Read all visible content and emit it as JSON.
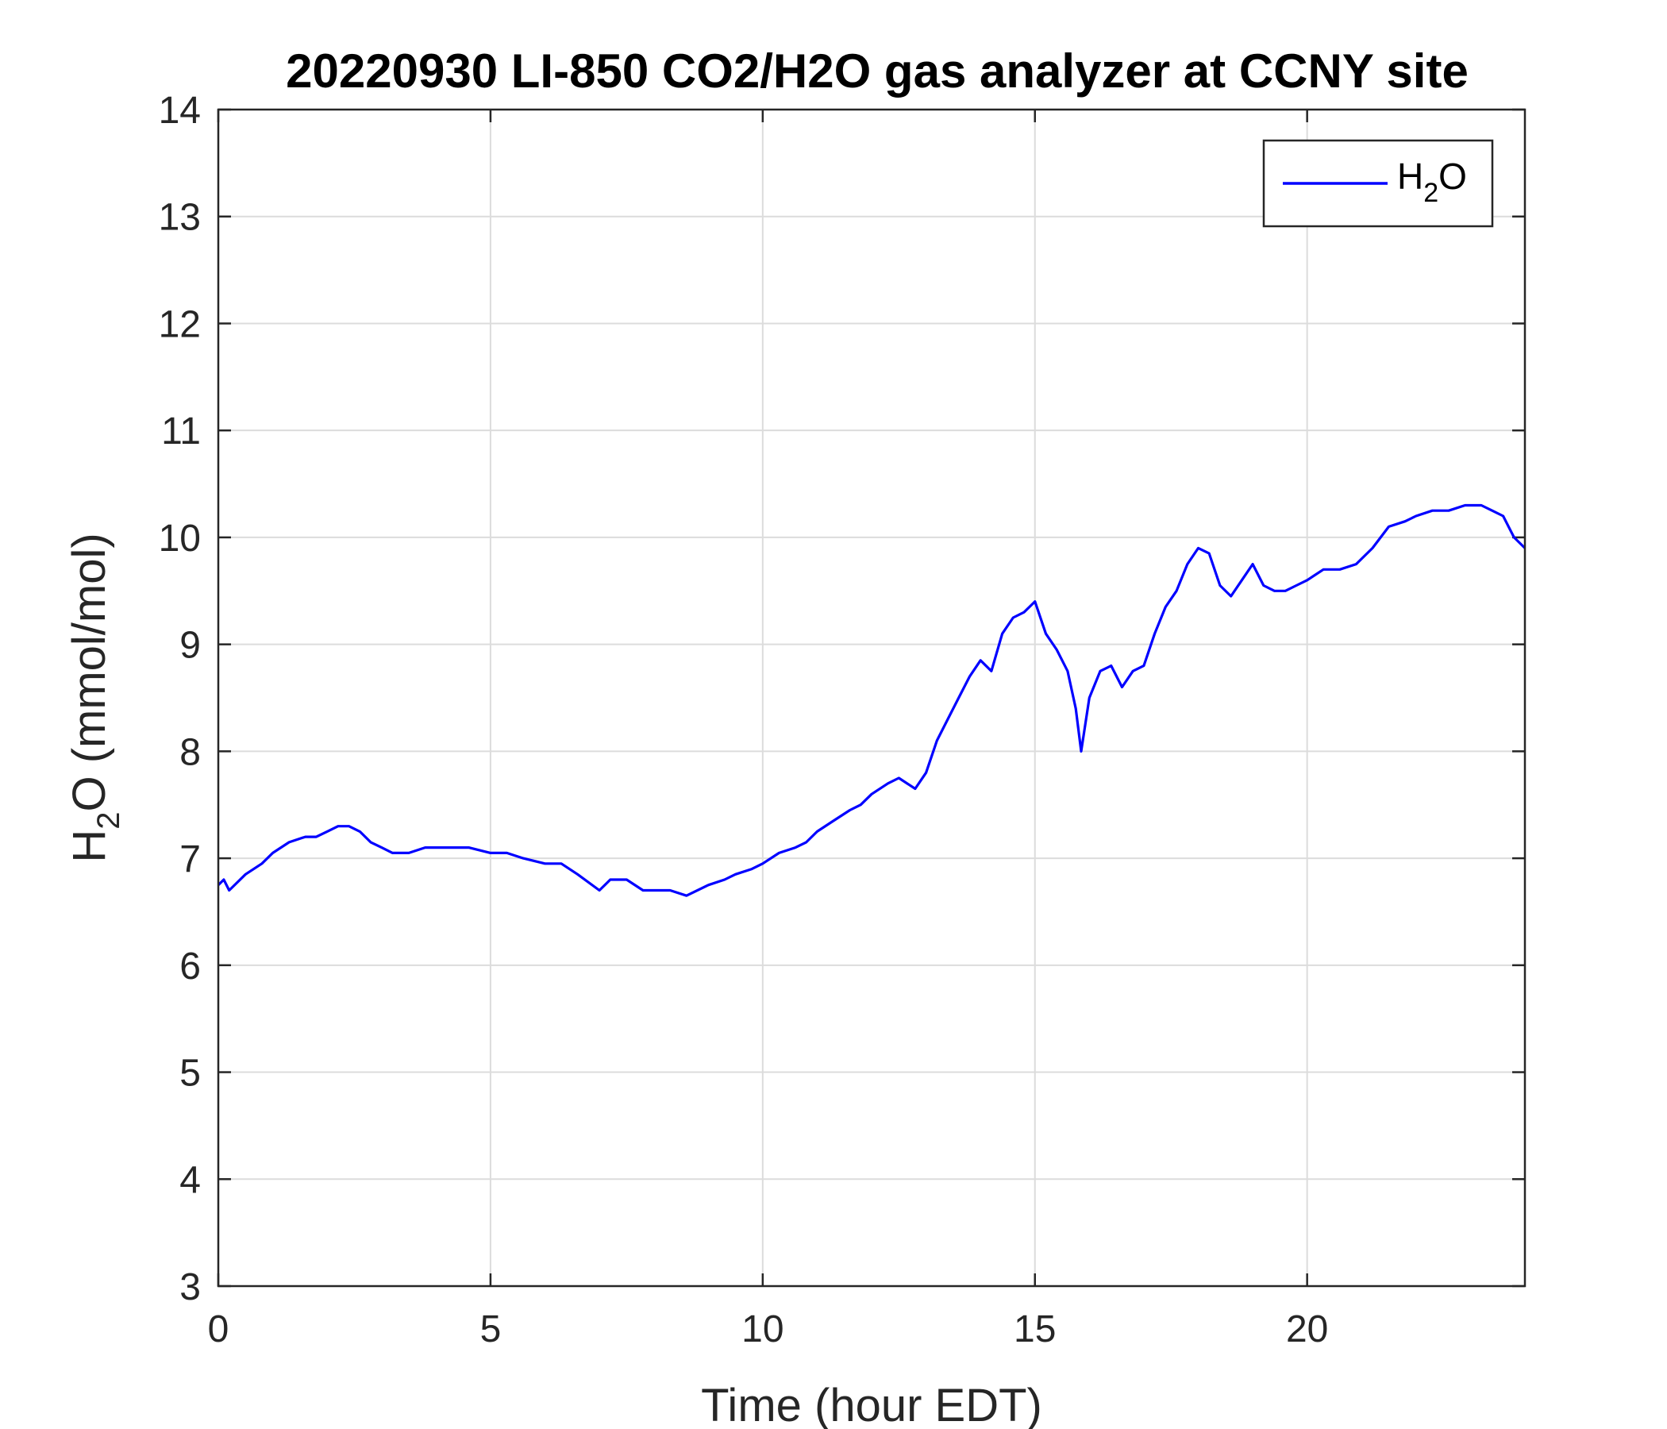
{
  "chart_data": {
    "type": "line",
    "title": "20220930 LI-850 CO2/H2O gas analyzer at CCNY site",
    "xlabel": "Time (hour EDT)",
    "ylabel": {
      "prefix": "H",
      "sub": "2",
      "suffix": "O (mmol/mol)"
    },
    "xlim": [
      0,
      24
    ],
    "ylim": [
      3,
      14
    ],
    "xticks": [
      0,
      5,
      10,
      15,
      20
    ],
    "yticks": [
      3,
      4,
      5,
      6,
      7,
      8,
      9,
      10,
      11,
      12,
      13,
      14
    ],
    "grid": true,
    "legend_position": "top-right",
    "series": [
      {
        "name": {
          "prefix": "H",
          "sub": "2",
          "suffix": "O"
        },
        "color": "#0000ff",
        "x": [
          0,
          0.1,
          0.2,
          0.5,
          0.8,
          1.0,
          1.3,
          1.6,
          1.8,
          2.0,
          2.2,
          2.4,
          2.6,
          2.8,
          3.0,
          3.2,
          3.5,
          3.8,
          4.0,
          4.3,
          4.6,
          5.0,
          5.3,
          5.6,
          6.0,
          6.3,
          6.6,
          7.0,
          7.2,
          7.5,
          7.8,
          8.0,
          8.3,
          8.6,
          9.0,
          9.3,
          9.5,
          9.8,
          10.0,
          10.3,
          10.6,
          10.8,
          11.0,
          11.3,
          11.6,
          11.8,
          12.0,
          12.3,
          12.5,
          12.8,
          13.0,
          13.2,
          13.4,
          13.6,
          13.8,
          14.0,
          14.2,
          14.4,
          14.6,
          14.8,
          15.0,
          15.2,
          15.4,
          15.6,
          15.75,
          15.85,
          16.0,
          16.2,
          16.4,
          16.6,
          16.8,
          17.0,
          17.2,
          17.4,
          17.6,
          17.8,
          18.0,
          18.2,
          18.4,
          18.6,
          18.8,
          19.0,
          19.2,
          19.4,
          19.6,
          19.8,
          20.0,
          20.3,
          20.6,
          20.9,
          21.2,
          21.5,
          21.8,
          22.0,
          22.3,
          22.6,
          22.9,
          23.2,
          23.4,
          23.6,
          23.8,
          24.0
        ],
        "values": [
          6.75,
          6.8,
          6.7,
          6.85,
          6.95,
          7.05,
          7.15,
          7.2,
          7.2,
          7.25,
          7.3,
          7.3,
          7.25,
          7.15,
          7.1,
          7.05,
          7.05,
          7.1,
          7.1,
          7.1,
          7.1,
          7.05,
          7.05,
          7.0,
          6.95,
          6.95,
          6.85,
          6.7,
          6.8,
          6.8,
          6.7,
          6.7,
          6.7,
          6.65,
          6.75,
          6.8,
          6.85,
          6.9,
          6.95,
          7.05,
          7.1,
          7.15,
          7.25,
          7.35,
          7.45,
          7.5,
          7.6,
          7.7,
          7.75,
          7.65,
          7.8,
          8.1,
          8.3,
          8.5,
          8.7,
          8.85,
          8.75,
          9.1,
          9.25,
          9.3,
          9.4,
          9.1,
          8.95,
          8.75,
          8.4,
          8.0,
          8.5,
          8.75,
          8.8,
          8.6,
          8.75,
          8.8,
          9.1,
          9.35,
          9.5,
          9.75,
          9.9,
          9.85,
          9.55,
          9.45,
          9.6,
          9.75,
          9.55,
          9.5,
          9.5,
          9.55,
          9.6,
          9.7,
          9.7,
          9.75,
          9.9,
          10.1,
          10.15,
          10.2,
          10.25,
          10.25,
          10.3,
          10.3,
          10.25,
          10.2,
          10.0,
          9.9
        ]
      }
    ]
  }
}
